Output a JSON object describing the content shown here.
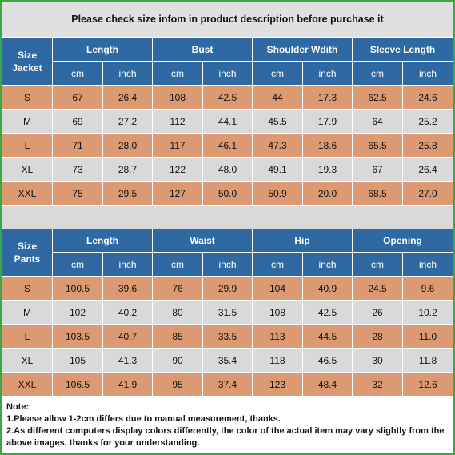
{
  "header": {
    "title": "Please check size infom in product description before purchase it"
  },
  "tables": [
    {
      "corner": [
        "Size",
        "Jacket"
      ],
      "groups": [
        "Length",
        "Bust",
        "Shoulder Wdith",
        "Sleeve Length"
      ],
      "units": [
        "cm",
        "inch",
        "cm",
        "inch",
        "cm",
        "inch",
        "cm",
        "inch"
      ],
      "rows": [
        [
          "S",
          "67",
          "26.4",
          "108",
          "42.5",
          "44",
          "17.3",
          "62.5",
          "24.6"
        ],
        [
          "M",
          "69",
          "27.2",
          "112",
          "44.1",
          "45.5",
          "17.9",
          "64",
          "25.2"
        ],
        [
          "L",
          "71",
          "28.0",
          "117",
          "46.1",
          "47.3",
          "18.6",
          "65.5",
          "25.8"
        ],
        [
          "XL",
          "73",
          "28.7",
          "122",
          "48.0",
          "49.1",
          "19.3",
          "67",
          "26.4"
        ],
        [
          "XXL",
          "75",
          "29.5",
          "127",
          "50.0",
          "50.9",
          "20.0",
          "68.5",
          "27.0"
        ]
      ]
    },
    {
      "corner": [
        "Size",
        "Pants"
      ],
      "groups": [
        "Length",
        "Waist",
        "Hip",
        "Opening"
      ],
      "units": [
        "cm",
        "inch",
        "cm",
        "inch",
        "cm",
        "inch",
        "cm",
        "inch"
      ],
      "rows": [
        [
          "S",
          "100.5",
          "39.6",
          "76",
          "29.9",
          "104",
          "40.9",
          "24.5",
          "9.6"
        ],
        [
          "M",
          "102",
          "40.2",
          "80",
          "31.5",
          "108",
          "42.5",
          "26",
          "10.2"
        ],
        [
          "L",
          "103.5",
          "40.7",
          "85",
          "33.5",
          "113",
          "44.5",
          "28",
          "11.0"
        ],
        [
          "XL",
          "105",
          "41.3",
          "90",
          "35.4",
          "118",
          "46.5",
          "30",
          "11.8"
        ],
        [
          "XXL",
          "106.5",
          "41.9",
          "95",
          "37.4",
          "123",
          "48.4",
          "32",
          "12.6"
        ]
      ]
    }
  ],
  "notes": {
    "title": "Note:",
    "lines": [
      "1.Please allow 1-2cm differs due to manual measurement, thanks.",
      "2.As different computers display colors differently, the color of the actual item may vary slightly from the above images,  thanks for your understanding."
    ]
  }
}
